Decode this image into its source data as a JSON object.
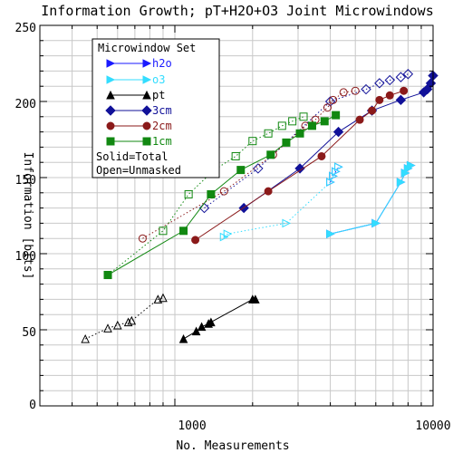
{
  "chart_data": {
    "type": "scatter",
    "title": "Information Growth; pT+H2O+O3 Joint Microwindows",
    "xlabel": "No. Measurements",
    "ylabel": "Information [bits]",
    "xscale": "log",
    "xlim": [
      300,
      10000
    ],
    "ylim": [
      0,
      250
    ],
    "grid": true,
    "legend_position": "top-left",
    "legend_title": "Microwindow Set",
    "legend_notes": [
      "Solid=Total",
      "Open=Unmasked"
    ],
    "x_tick_labels": [
      "1000",
      "10000"
    ],
    "y_tick_labels": [
      "0",
      "50",
      "100",
      "150",
      "200",
      "250"
    ],
    "colors": {
      "h2o": "#1a1aff",
      "o3": "#33ddff",
      "pt": "#000000",
      "3cm": "#111199",
      "2cm": "#8b1a1a",
      "1cm": "#118811",
      "grid": "#c8c8c8"
    },
    "series": [
      {
        "name": "h2o",
        "key": "h2o",
        "marker": "triangle-right",
        "total": {
          "x": [
            4000,
            6000,
            7500,
            7800,
            8000,
            8200
          ],
          "y": [
            113,
            120,
            147,
            153,
            156,
            158
          ]
        },
        "unmasked": {
          "x": [
            4000,
            4100,
            4200,
            4300
          ],
          "y": [
            147,
            151,
            154,
            157
          ]
        }
      },
      {
        "name": "o3",
        "key": "o3",
        "marker": "triangle-right",
        "total": {
          "x": [
            4000,
            6000,
            7500,
            7800,
            8000,
            8200
          ],
          "y": [
            113,
            120,
            147,
            153,
            156,
            158
          ]
        },
        "unmasked": {
          "x": [
            1550,
            1600,
            2700,
            4000,
            4100,
            4200,
            4300
          ],
          "y": [
            111,
            113,
            120,
            147,
            151,
            154,
            157
          ]
        }
      },
      {
        "name": "pt",
        "key": "pt",
        "marker": "triangle-up",
        "total": {
          "x": [
            1080,
            1210,
            1270,
            1350,
            1380,
            2000,
            2050
          ],
          "y": [
            44,
            49,
            52,
            54,
            55,
            70,
            70
          ]
        },
        "unmasked": {
          "x": [
            450,
            550,
            600,
            660,
            680,
            860,
            900
          ],
          "y": [
            44,
            51,
            53,
            55,
            56,
            70,
            71
          ]
        }
      },
      {
        "name": "3cm",
        "key": "3cm",
        "marker": "diamond",
        "total": {
          "x": [
            1850,
            3050,
            4300,
            5800,
            7500,
            9200,
            9500,
            9800,
            10000
          ],
          "y": [
            130,
            156,
            180,
            194,
            201,
            206,
            208,
            212,
            217
          ]
        },
        "unmasked": {
          "x": [
            1300,
            2100,
            4000,
            5500,
            6200,
            6800,
            7500,
            8000
          ],
          "y": [
            130,
            156,
            200,
            208,
            212,
            214,
            216,
            218
          ]
        }
      },
      {
        "name": "2cm",
        "key": "2cm",
        "marker": "circle",
        "total": {
          "x": [
            1200,
            2300,
            3700,
            5200,
            5800,
            6200,
            6800,
            7700
          ],
          "y": [
            109,
            141,
            164,
            188,
            194,
            201,
            204,
            207
          ]
        },
        "unmasked": {
          "x": [
            750,
            1550,
            2400,
            3200,
            3500,
            3900,
            4100,
            4500,
            5000
          ],
          "y": [
            110,
            141,
            165,
            184,
            188,
            196,
            201,
            206,
            207
          ]
        }
      },
      {
        "name": "1cm",
        "key": "1cm",
        "marker": "square",
        "total": {
          "x": [
            550,
            1080,
            1380,
            1800,
            2350,
            2700,
            3050,
            3400,
            3800,
            4200
          ],
          "y": [
            86,
            115,
            139,
            155,
            165,
            173,
            179,
            184,
            187,
            191
          ]
        },
        "unmasked": {
          "x": [
            550,
            900,
            1130,
            1420,
            1720,
            2000,
            2300,
            2600,
            2850,
            3150
          ],
          "y": [
            86,
            115,
            139,
            155,
            164,
            174,
            179,
            184,
            187,
            190
          ]
        }
      }
    ]
  }
}
